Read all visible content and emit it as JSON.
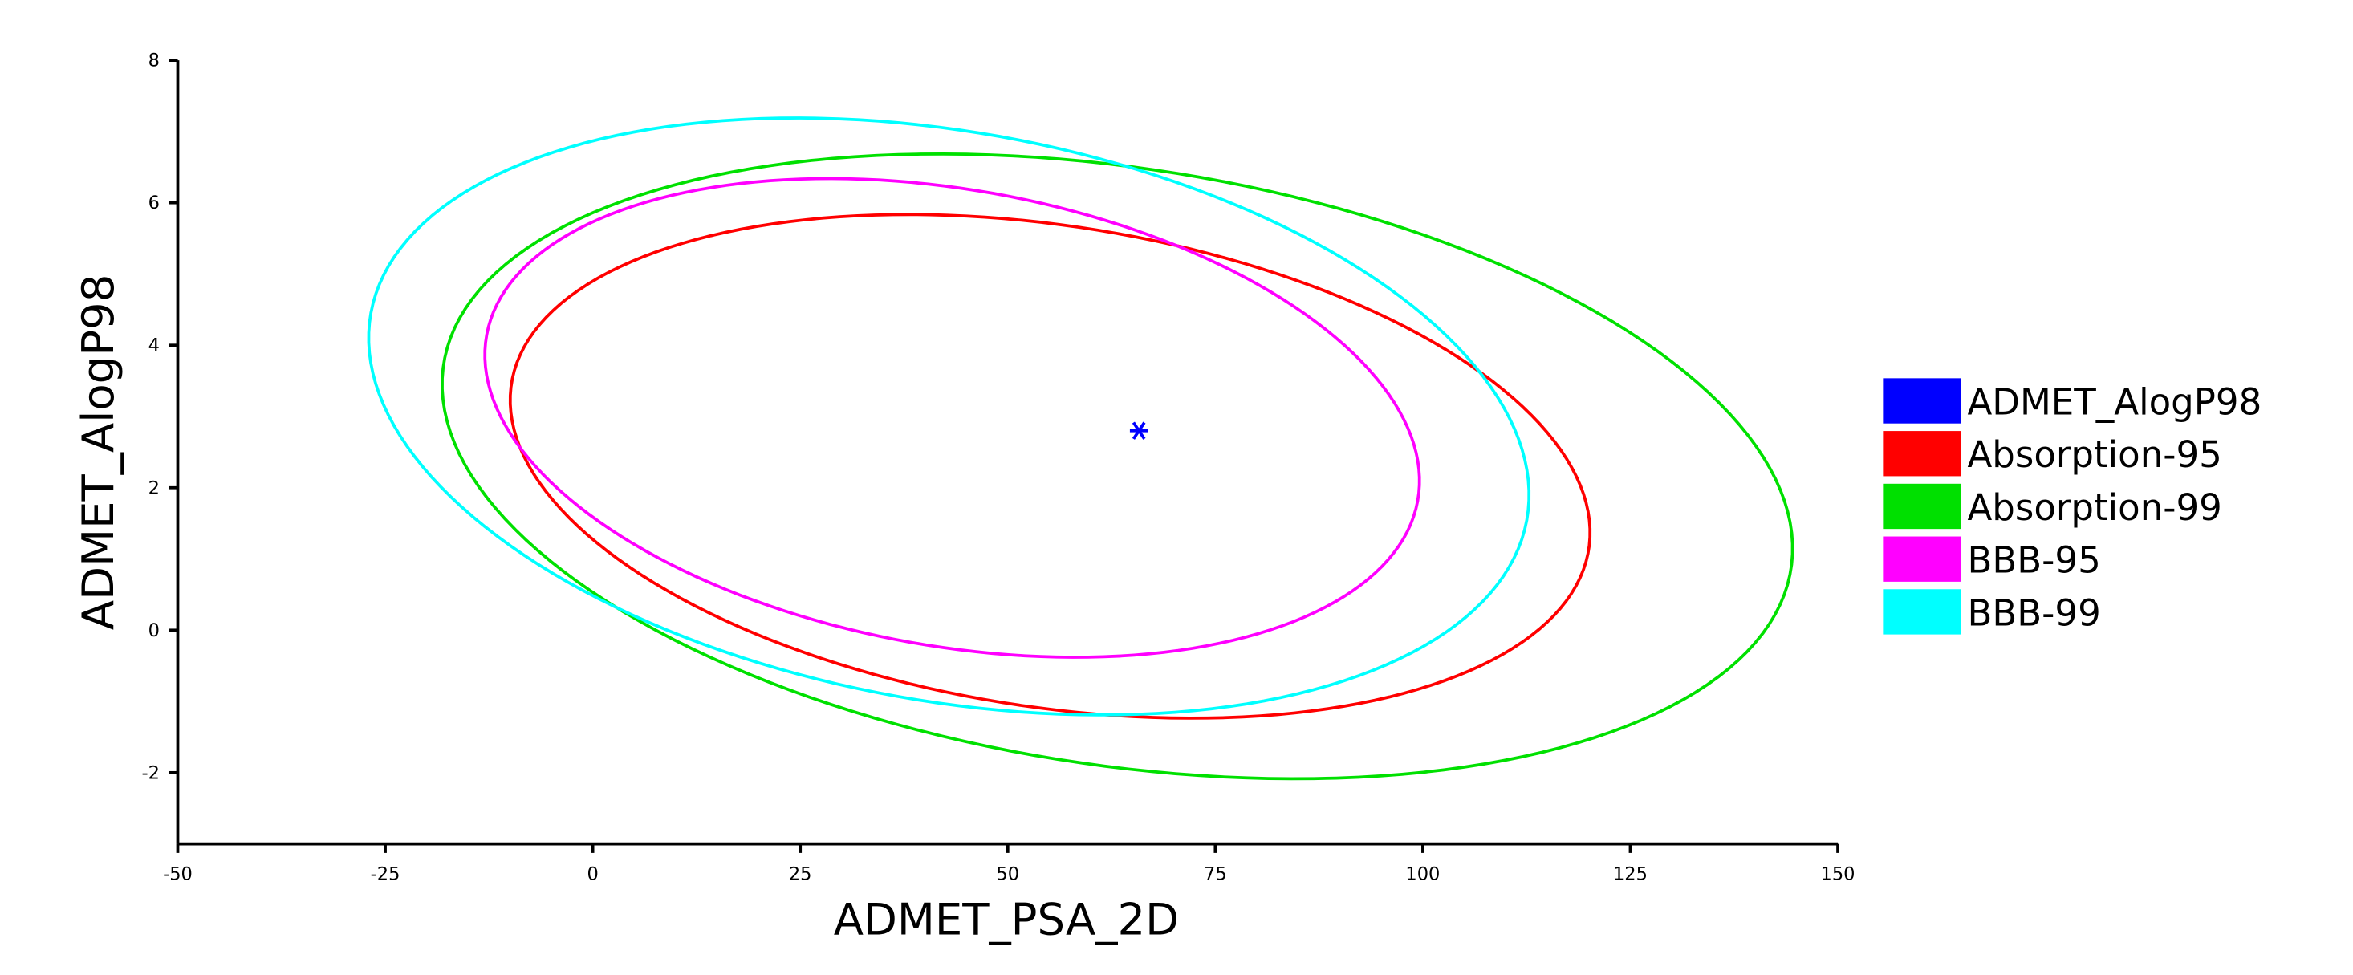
{
  "chart_data": {
    "type": "scatter",
    "title": "",
    "xlabel": "ADMET_PSA_2D",
    "ylabel": "ADMET_AlogP98",
    "xlim": [
      -50,
      150
    ],
    "ylim": [
      -3,
      8
    ],
    "xticks": [
      "-50",
      "-25",
      "0",
      "25",
      "50",
      "75",
      "100",
      "125",
      "150"
    ],
    "yticks": [
      "-2",
      "0",
      "2",
      "4",
      "6",
      "8"
    ],
    "grid": false,
    "legend_position": "right",
    "series": [
      {
        "name": "ADMET_AlogP98",
        "kind": "point",
        "marker": "star",
        "color": "#0000ff",
        "points": [
          {
            "x": 65.8,
            "y": 2.8
          }
        ]
      },
      {
        "name": "Absorption-95",
        "kind": "ellipse",
        "color": "#ff0000",
        "center": {
          "x": 55.1,
          "y": 2.3
        },
        "extrema": {
          "x_min": -1.7,
          "x_max": 128.4,
          "y_min": -1.23,
          "y_max": 5.84
        }
      },
      {
        "name": "Absorption-99",
        "kind": "ellipse",
        "color": "#00e000",
        "center": {
          "x": 63.2,
          "y": 2.3
        },
        "extrema": {
          "x_min": -18.2,
          "x_max": 144.5,
          "y_min": -2.07,
          "y_max": 6.7
        }
      },
      {
        "name": "BBB-95",
        "kind": "ellipse",
        "color": "#ff00ff",
        "center": {
          "x": 43.3,
          "y": 2.98
        },
        "extrema": {
          "x_min": -13.5,
          "x_max": 99.1,
          "y_min": -0.38,
          "y_max": 6.34
        }
      },
      {
        "name": "BBB-99",
        "kind": "ellipse",
        "color": "#00ffff",
        "center": {
          "x": 42.9,
          "y": 3.0
        },
        "extrema": {
          "x_min": -27.2,
          "x_max": 112.6,
          "y_min": -1.2,
          "y_max": 7.18
        }
      }
    ]
  }
}
